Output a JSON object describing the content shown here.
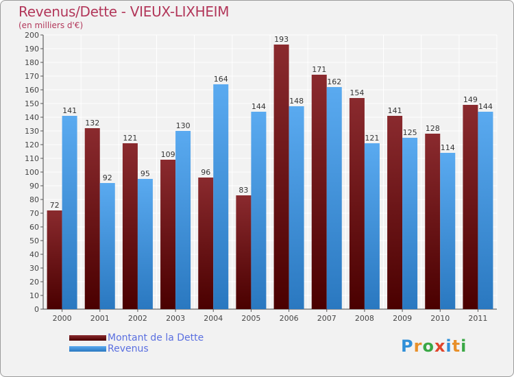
{
  "header": {
    "title": "Revenus/Dette - VIEUX-LIXHEIM",
    "subtitle": "(en milliers d'€)"
  },
  "logo": {
    "text": "Proxiti",
    "letters": [
      {
        "char": "P",
        "color": "#2f8fd8"
      },
      {
        "char": "r",
        "color": "#e8902a"
      },
      {
        "char": "o",
        "color": "#3aa845"
      },
      {
        "char": "x",
        "color": "#e0452b"
      },
      {
        "char": "i",
        "color": "#2f8fd8"
      },
      {
        "char": "t",
        "color": "#e8902a"
      },
      {
        "char": "i",
        "color": "#3aa845"
      }
    ]
  },
  "colors": {
    "dette": "#7a1f24",
    "revenus": "#4a9fe2",
    "background": "#f2f2f2",
    "grid": "#ffffff",
    "title": "#b2375a",
    "legend_text": "#5a6fe0"
  },
  "chart_data": {
    "type": "bar",
    "categories": [
      "2000",
      "2001",
      "2002",
      "2003",
      "2004",
      "2005",
      "2006",
      "2007",
      "2008",
      "2009",
      "2010",
      "2011"
    ],
    "series": [
      {
        "name": "Montant de la Dette",
        "values": [
          72,
          132,
          121,
          109,
          96,
          83,
          193,
          171,
          154,
          141,
          128,
          149
        ]
      },
      {
        "name": "Revenus",
        "values": [
          141,
          92,
          95,
          130,
          164,
          144,
          148,
          162,
          121,
          125,
          114,
          144
        ]
      }
    ],
    "ylim": [
      0,
      200
    ],
    "ytick_step": 10,
    "grid": true,
    "legend_position": "bottom-left",
    "data_labels": true
  }
}
